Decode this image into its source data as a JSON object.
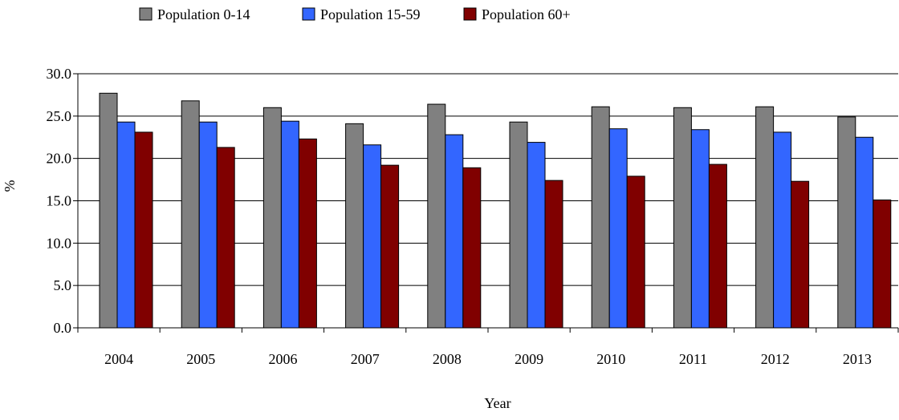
{
  "chart_data": {
    "type": "bar",
    "title": "",
    "xlabel": "Year",
    "ylabel": "%",
    "categories": [
      "2004",
      "2005",
      "2006",
      "2007",
      "2008",
      "2009",
      "2010",
      "2011",
      "2012",
      "2013"
    ],
    "series": [
      {
        "name": "Population 0-14",
        "color": "#808080",
        "values": [
          27.7,
          26.8,
          26.0,
          24.1,
          26.4,
          24.3,
          26.1,
          26.0,
          26.1,
          24.9
        ]
      },
      {
        "name": "Population 15-59",
        "color": "#3366ff",
        "values": [
          24.3,
          24.3,
          24.4,
          21.6,
          22.8,
          21.9,
          23.5,
          23.4,
          23.1,
          22.5
        ]
      },
      {
        "name": "Population 60+",
        "color": "#800000",
        "values": [
          23.1,
          21.3,
          22.3,
          19.2,
          18.9,
          17.4,
          17.9,
          19.3,
          17.3,
          15.1
        ]
      }
    ],
    "yticks": [
      "0.0",
      "5.0",
      "10.0",
      "15.0",
      "20.0",
      "25.0",
      "30.0"
    ],
    "ylim": [
      0,
      30
    ],
    "grid": true,
    "legend_position": "top"
  }
}
